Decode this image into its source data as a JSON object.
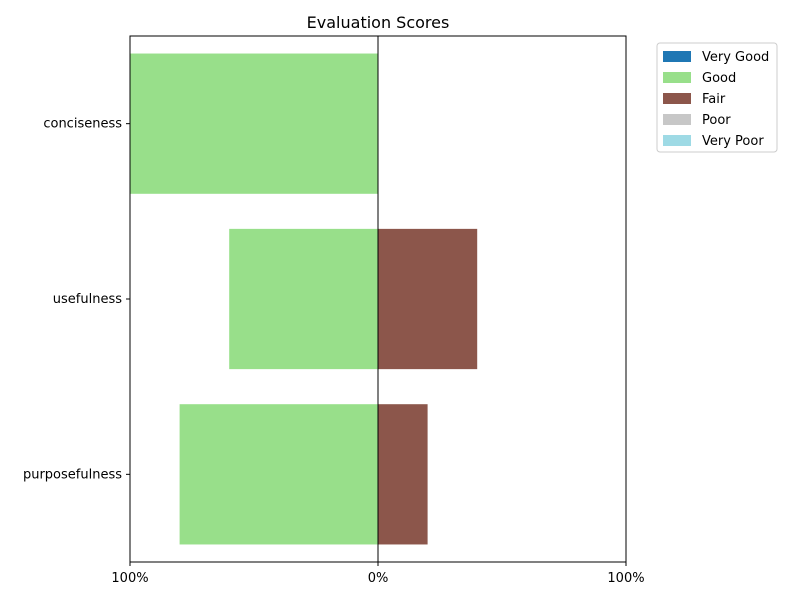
{
  "chart_data": {
    "type": "bar",
    "orientation": "horizontal",
    "stacking": "diverging",
    "title": "Evaluation Scores",
    "xlabel": "",
    "ylabel": "",
    "xlim": [
      -100,
      100
    ],
    "xtick_values": [
      -100,
      0,
      100
    ],
    "xtick_labels": [
      "100%",
      "0%",
      "100%"
    ],
    "categories": [
      "conciseness",
      "usefulness",
      "purposefulness"
    ],
    "series": [
      {
        "name": "Very Good",
        "color": "#1f77b4",
        "values": [
          0,
          0,
          0
        ]
      },
      {
        "name": "Good",
        "color": "#98df8a",
        "values": [
          100,
          60,
          80
        ]
      },
      {
        "name": "Fair",
        "color": "#8c564b",
        "values": [
          0,
          40,
          20
        ]
      },
      {
        "name": "Poor",
        "color": "#c7c7c7",
        "values": [
          0,
          0,
          0
        ]
      },
      {
        "name": "Very Poor",
        "color": "#9edae5",
        "values": [
          0,
          0,
          0
        ]
      }
    ],
    "negative_side": [
      "Very Good",
      "Good"
    ],
    "positive_side": [
      "Fair",
      "Poor",
      "Very Poor"
    ],
    "legend": "upper-right-outside",
    "grid": false
  }
}
